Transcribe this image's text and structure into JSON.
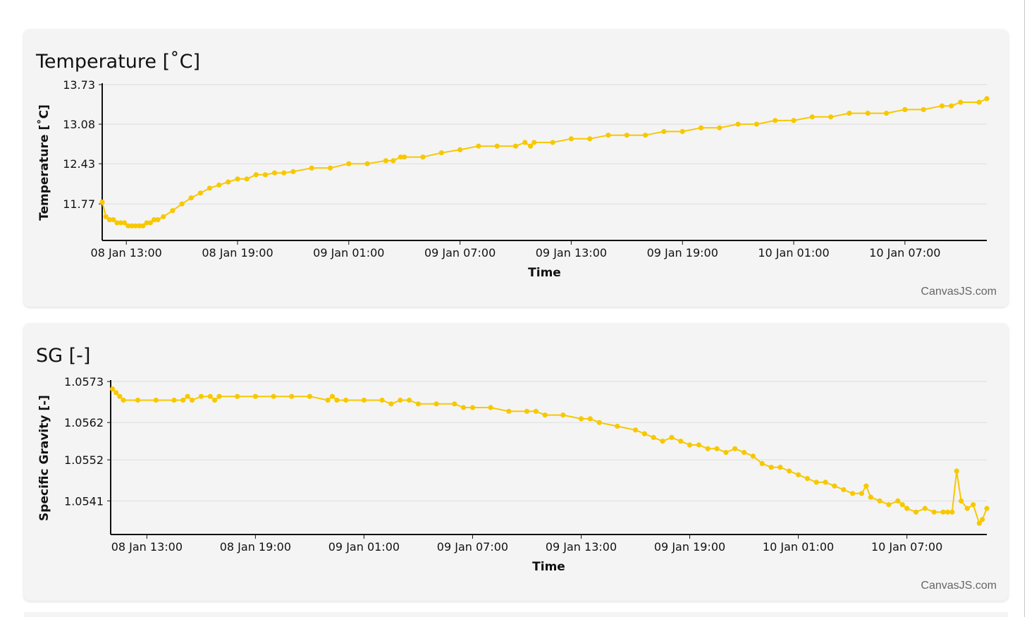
{
  "colors": {
    "series": "#F7C800",
    "grid": "#dddddd",
    "axis": "#111111",
    "card": "#f4f4f4"
  },
  "chart_data": [
    {
      "type": "line",
      "title": "Temperature [˚C]",
      "xlabel": "Time",
      "ylabel": "Temperature [˚C]",
      "credit": "CanvasJS.com",
      "grid": true,
      "legend": "none",
      "xlim": [
        "08 Jan 11:42",
        "10 Jan 11:25"
      ],
      "ylim": [
        11.17,
        13.73
      ],
      "y_ticks": [
        "13.73",
        "13.08",
        "12.43",
        "11.77"
      ],
      "y_tick_values": [
        13.73,
        13.08,
        12.43,
        11.77
      ],
      "x_ticks": [
        "08 Jan 13:00",
        "08 Jan 19:00",
        "09 Jan 01:00",
        "09 Jan 07:00",
        "09 Jan 13:00",
        "09 Jan 19:00",
        "10 Jan 01:00",
        "10 Jan 07:00"
      ],
      "series": [
        {
          "name": "",
          "x": [
            "08 Jan 11:42",
            "08 Jan 11:54",
            "08 Jan 12:06",
            "08 Jan 12:18",
            "08 Jan 12:30",
            "08 Jan 12:42",
            "08 Jan 12:54",
            "08 Jan 13:06",
            "08 Jan 13:18",
            "08 Jan 13:30",
            "08 Jan 13:42",
            "08 Jan 13:54",
            "08 Jan 14:06",
            "08 Jan 14:18",
            "08 Jan 14:30",
            "08 Jan 14:42",
            "08 Jan 15:00",
            "08 Jan 15:30",
            "08 Jan 16:00",
            "08 Jan 16:30",
            "08 Jan 17:00",
            "08 Jan 17:30",
            "08 Jan 18:00",
            "08 Jan 18:30",
            "08 Jan 19:00",
            "08 Jan 19:30",
            "08 Jan 20:00",
            "08 Jan 20:30",
            "08 Jan 21:00",
            "08 Jan 21:30",
            "08 Jan 22:00",
            "08 Jan 23:00",
            "09 Jan 00:00",
            "09 Jan 01:00",
            "09 Jan 02:00",
            "09 Jan 03:00",
            "09 Jan 03:24",
            "09 Jan 03:48",
            "09 Jan 04:00",
            "09 Jan 05:00",
            "09 Jan 06:00",
            "09 Jan 07:00",
            "09 Jan 08:00",
            "09 Jan 09:00",
            "09 Jan 10:00",
            "09 Jan 10:30",
            "09 Jan 10:48",
            "09 Jan 11:00",
            "09 Jan 12:00",
            "09 Jan 13:00",
            "09 Jan 14:00",
            "09 Jan 15:00",
            "09 Jan 16:00",
            "09 Jan 17:00",
            "09 Jan 18:00",
            "09 Jan 19:00",
            "09 Jan 20:00",
            "09 Jan 21:00",
            "09 Jan 22:00",
            "09 Jan 23:00",
            "10 Jan 00:00",
            "10 Jan 01:00",
            "10 Jan 02:00",
            "10 Jan 03:00",
            "10 Jan 04:00",
            "10 Jan 05:00",
            "10 Jan 06:00",
            "10 Jan 07:00",
            "10 Jan 08:00",
            "10 Jan 09:00",
            "10 Jan 09:30",
            "10 Jan 10:00",
            "10 Jan 11:00",
            "10 Jan 11:25"
          ],
          "y": [
            11.8,
            11.56,
            11.51,
            11.51,
            11.46,
            11.46,
            11.46,
            11.41,
            11.41,
            11.41,
            11.41,
            11.41,
            11.46,
            11.46,
            11.51,
            11.51,
            11.56,
            11.66,
            11.77,
            11.87,
            11.95,
            12.03,
            12.08,
            12.13,
            12.18,
            12.18,
            12.25,
            12.25,
            12.28,
            12.28,
            12.3,
            12.36,
            12.36,
            12.43,
            12.43,
            12.48,
            12.48,
            12.54,
            12.54,
            12.54,
            12.61,
            12.66,
            12.72,
            12.72,
            12.72,
            12.78,
            12.72,
            12.78,
            12.78,
            12.84,
            12.84,
            12.9,
            12.9,
            12.9,
            12.96,
            12.96,
            13.02,
            13.02,
            13.08,
            13.08,
            13.14,
            13.14,
            13.2,
            13.2,
            13.26,
            13.26,
            13.26,
            13.32,
            13.32,
            13.38,
            13.38,
            13.44,
            13.44,
            13.5
          ]
        }
      ]
    },
    {
      "type": "line",
      "title": "SG [-]",
      "xlabel": "Time",
      "ylabel": "Specific Gravity [-]",
      "credit": "CanvasJS.com",
      "grid": true,
      "legend": "none",
      "xlim": [
        "08 Jan 11:00",
        "10 Jan 11:25"
      ],
      "ylim": [
        1.0532,
        1.0573
      ],
      "y_ticks": [
        "1.0573",
        "1.0562",
        "1.0552",
        "1.0541"
      ],
      "y_tick_values": [
        1.0573,
        1.0562,
        1.0552,
        1.0541
      ],
      "x_ticks": [
        "08 Jan 13:00",
        "08 Jan 19:00",
        "09 Jan 01:00",
        "09 Jan 07:00",
        "09 Jan 13:00",
        "09 Jan 19:00",
        "10 Jan 01:00",
        "10 Jan 07:00"
      ],
      "series": [
        {
          "name": "",
          "x": [
            "08 Jan 11:06",
            "08 Jan 11:18",
            "08 Jan 11:30",
            "08 Jan 11:42",
            "08 Jan 12:30",
            "08 Jan 13:30",
            "08 Jan 14:30",
            "08 Jan 15:00",
            "08 Jan 15:15",
            "08 Jan 15:30",
            "08 Jan 16:00",
            "08 Jan 16:30",
            "08 Jan 16:45",
            "08 Jan 17:00",
            "08 Jan 18:00",
            "08 Jan 19:00",
            "08 Jan 20:00",
            "08 Jan 21:00",
            "08 Jan 22:00",
            "08 Jan 23:00",
            "08 Jan 23:15",
            "08 Jan 23:30",
            "09 Jan 00:00",
            "09 Jan 01:00",
            "09 Jan 02:00",
            "09 Jan 02:30",
            "09 Jan 03:00",
            "09 Jan 03:30",
            "09 Jan 04:00",
            "09 Jan 05:00",
            "09 Jan 06:00",
            "09 Jan 06:30",
            "09 Jan 07:00",
            "09 Jan 08:00",
            "09 Jan 09:00",
            "09 Jan 10:00",
            "09 Jan 10:30",
            "09 Jan 11:00",
            "09 Jan 12:00",
            "09 Jan 13:00",
            "09 Jan 13:30",
            "09 Jan 14:00",
            "09 Jan 15:00",
            "09 Jan 16:00",
            "09 Jan 16:30",
            "09 Jan 17:00",
            "09 Jan 17:30",
            "09 Jan 18:00",
            "09 Jan 18:30",
            "09 Jan 19:00",
            "09 Jan 19:30",
            "09 Jan 20:00",
            "09 Jan 20:30",
            "09 Jan 21:00",
            "09 Jan 21:30",
            "09 Jan 22:00",
            "09 Jan 22:30",
            "09 Jan 23:00",
            "09 Jan 23:30",
            "10 Jan 00:00",
            "10 Jan 00:30",
            "10 Jan 01:00",
            "10 Jan 01:30",
            "10 Jan 02:00",
            "10 Jan 02:30",
            "10 Jan 03:00",
            "10 Jan 03:30",
            "10 Jan 04:00",
            "10 Jan 04:30",
            "10 Jan 04:45",
            "10 Jan 05:00",
            "10 Jan 05:30",
            "10 Jan 06:00",
            "10 Jan 06:30",
            "10 Jan 06:45",
            "10 Jan 07:00",
            "10 Jan 07:30",
            "10 Jan 08:00",
            "10 Jan 08:30",
            "10 Jan 09:00",
            "10 Jan 09:15",
            "10 Jan 09:30",
            "10 Jan 09:45",
            "10 Jan 10:00",
            "10 Jan 10:20",
            "10 Jan 10:40",
            "10 Jan 11:00",
            "10 Jan 11:10",
            "10 Jan 11:25"
          ],
          "y": [
            1.0571,
            1.057,
            1.0569,
            1.0568,
            1.0568,
            1.0568,
            1.0568,
            1.0568,
            1.0569,
            1.0568,
            1.0569,
            1.0569,
            1.0568,
            1.0569,
            1.0569,
            1.0569,
            1.0569,
            1.0569,
            1.0569,
            1.0568,
            1.0569,
            1.0568,
            1.0568,
            1.0568,
            1.0568,
            1.0567,
            1.0568,
            1.0568,
            1.0567,
            1.0567,
            1.0567,
            1.0566,
            1.0566,
            1.0566,
            1.0565,
            1.0565,
            1.0565,
            1.0564,
            1.0564,
            1.0563,
            1.0563,
            1.0562,
            1.0561,
            1.056,
            1.0559,
            1.0558,
            1.0557,
            1.0558,
            1.0557,
            1.0556,
            1.0556,
            1.0555,
            1.0555,
            1.0554,
            1.0555,
            1.0554,
            1.0553,
            1.0551,
            1.055,
            1.055,
            1.0549,
            1.0548,
            1.0547,
            1.0546,
            1.0546,
            1.0545,
            1.0544,
            1.0543,
            1.0543,
            1.0545,
            1.0542,
            1.0541,
            1.054,
            1.0541,
            1.054,
            1.0539,
            1.0538,
            1.0539,
            1.0538,
            1.0538,
            1.0538,
            1.0538,
            1.0549,
            1.0541,
            1.0539,
            1.054,
            1.0535,
            1.0536,
            1.0539
          ]
        }
      ]
    }
  ]
}
